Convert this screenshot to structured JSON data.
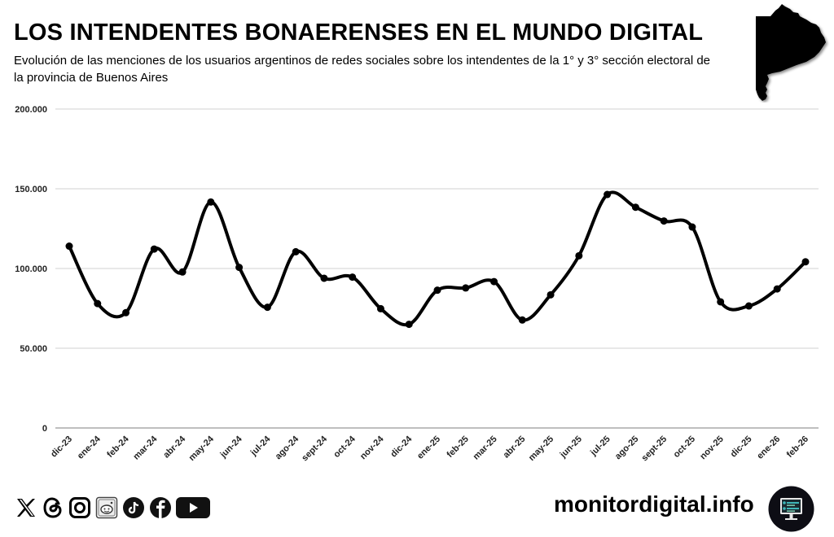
{
  "header": {
    "title": "LOS INTENDENTES BONAERENSES EN EL MUNDO DIGITAL",
    "subtitle": "Evolución de las menciones de los usuarios argentinos de redes sociales sobre los intendentes de la 1° y 3° sección electoral de la provincia de Buenos Aires",
    "map_icon": "buenos-aires-province-map"
  },
  "chart_data": {
    "type": "line",
    "title": "LOS INTENDENTES BONAERENSES EN EL MUNDO DIGITAL",
    "xlabel": "",
    "ylabel": "",
    "categories": [
      "dic-23",
      "ene-24",
      "feb-24",
      "mar-24",
      "abr-24",
      "may-24",
      "jun-24",
      "jul-24",
      "ago-24",
      "sept-24",
      "oct-24",
      "nov-24",
      "dic-24",
      "ene-25",
      "feb-25",
      "mar-25",
      "abr-25",
      "may-25",
      "jun-25",
      "jul-25",
      "ago-25",
      "sept-25",
      "oct-25",
      "nov-25",
      "dic-25",
      "ene-26",
      "feb-26"
    ],
    "series": [
      {
        "name": "Menciones",
        "color": "#000000",
        "values": [
          114000,
          78000,
          72300,
          112200,
          97800,
          141700,
          100700,
          75700,
          110500,
          93900,
          94600,
          74800,
          65000,
          86400,
          87800,
          91800,
          67700,
          83500,
          108000,
          146400,
          138400,
          129800,
          126000,
          79100,
          76500,
          87200,
          104200
        ]
      }
    ],
    "ylim": [
      0,
      200000
    ],
    "yticks": [
      0,
      50000,
      100000,
      150000,
      200000
    ],
    "ytick_labels": [
      "0",
      "50.000",
      "100.000",
      "150.000",
      "200.000"
    ],
    "grid": true,
    "legend": "none",
    "smooth": true
  },
  "footer": {
    "socials": [
      {
        "name": "x-icon"
      },
      {
        "name": "threads-icon"
      },
      {
        "name": "instagram-icon"
      },
      {
        "name": "reddit-icon"
      },
      {
        "name": "tiktok-icon"
      },
      {
        "name": "facebook-icon"
      },
      {
        "name": "youtube-icon"
      }
    ],
    "brand": "monitordigital.info",
    "brand_logo_colors": {
      "bg": "#0d0d14",
      "accent": "#3fb6b8",
      "screen": "#e8e8e8"
    }
  }
}
